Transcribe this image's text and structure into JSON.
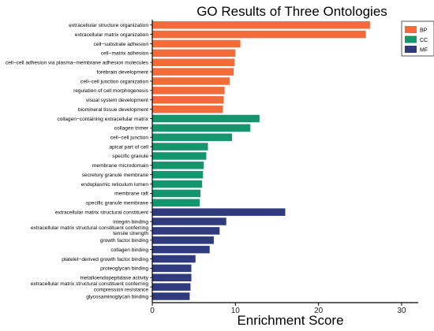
{
  "chart_data": {
    "type": "bar",
    "orientation": "horizontal",
    "title": "GO Results of Three Ontologies",
    "xlabel": "Enrichment Score",
    "ylabel": "",
    "xlim": [
      0,
      32
    ],
    "xticks": [
      0,
      10,
      20,
      30
    ],
    "grid": false,
    "legend_position": "top-right",
    "legend": [
      {
        "name": "BP",
        "color": "#F26B38"
      },
      {
        "name": "CC",
        "color": "#14956E"
      },
      {
        "name": "MF",
        "color": "#303A7E"
      }
    ],
    "categories": [
      "extracellular structure organization",
      "extracellular matrix organization",
      "cell−substrate adhesion",
      "cell−matrix adhesion",
      "cell−cell adhesion via plasma−membrane adhesion molecules",
      "forebrain development",
      "cell−cell junction organization",
      "regulation of cell morphogenesis",
      "visual system development",
      "biomineral tissue development",
      "collagen−containing extracellular matrix",
      "collagen trimer",
      "cell−cell junction",
      "apical part of cell",
      "specific granule",
      "membrane microdomain",
      "secretory granule membrane",
      "endoplasmic reticulum lumen",
      "membrane raft",
      "specific granule membrane",
      "extracellular matrix structural constituent",
      "integrin binding",
      "extracellular matrix structural constituent conferring\ntensile strength",
      "growth factor binding",
      "collagen binding",
      "platelet−derived growth factor binding",
      "proteoglycan binding",
      "metalloendopeptidase activity",
      "extracellular matrix structural constituent conferring\ncompression resistance",
      "glycosaminoglycan binding"
    ],
    "values": [
      26.2,
      25.7,
      10.6,
      10.0,
      9.9,
      9.8,
      9.3,
      8.7,
      8.6,
      8.5,
      12.9,
      11.8,
      9.6,
      6.7,
      6.5,
      6.2,
      6.1,
      6.0,
      5.8,
      5.7,
      16.0,
      8.9,
      8.1,
      7.4,
      6.9,
      5.2,
      4.7,
      4.7,
      4.6,
      4.5
    ],
    "groups": [
      "BP",
      "BP",
      "BP",
      "BP",
      "BP",
      "BP",
      "BP",
      "BP",
      "BP",
      "BP",
      "CC",
      "CC",
      "CC",
      "CC",
      "CC",
      "CC",
      "CC",
      "CC",
      "CC",
      "CC",
      "MF",
      "MF",
      "MF",
      "MF",
      "MF",
      "MF",
      "MF",
      "MF",
      "MF",
      "MF"
    ]
  }
}
